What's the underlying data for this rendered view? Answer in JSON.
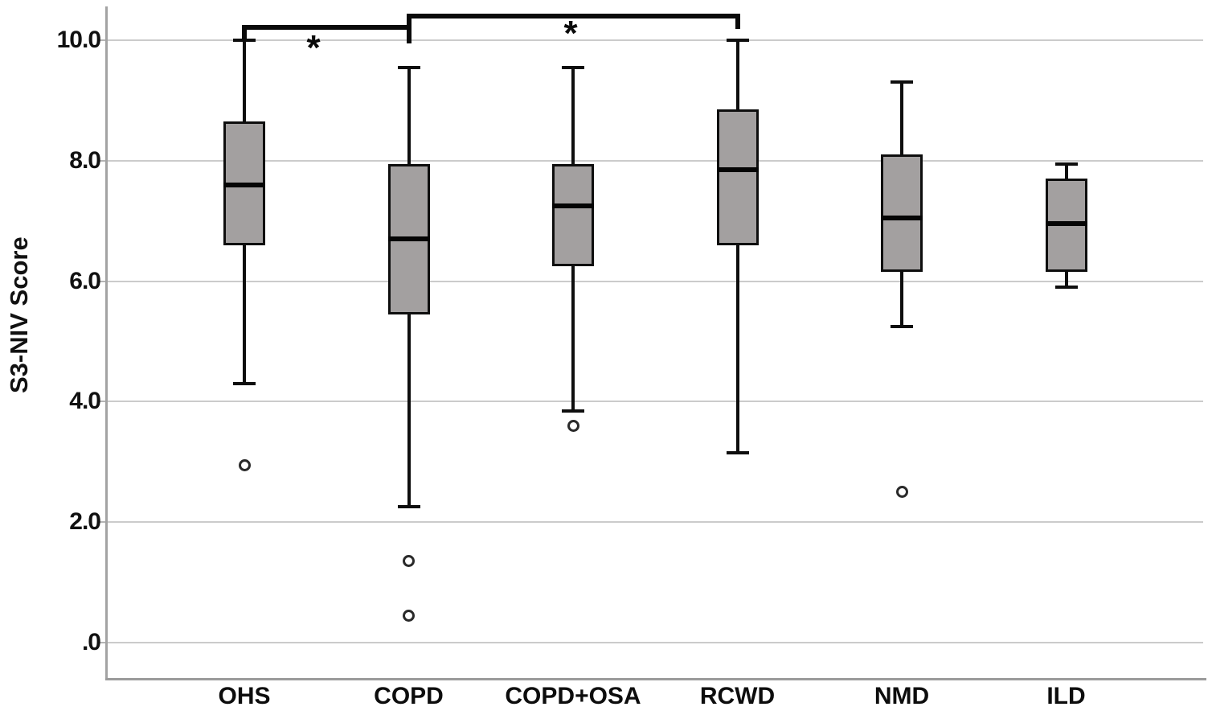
{
  "chart_data": {
    "type": "box",
    "title": "",
    "xlabel": "",
    "ylabel": "S3-NIV Score",
    "ylim": [
      0,
      10
    ],
    "grid": true,
    "yticks": [
      {
        "value": 10.0,
        "label": "10.0"
      },
      {
        "value": 8.0,
        "label": "8.0"
      },
      {
        "value": 6.0,
        "label": "6.0"
      },
      {
        "value": 4.0,
        "label": "4.0"
      },
      {
        "value": 2.0,
        "label": "2.0"
      },
      {
        "value": 0.0,
        "label": ".0"
      }
    ],
    "categories": [
      "OHS",
      "COPD",
      "COPD+OSA",
      "RCWD",
      "NMD",
      "ILD"
    ],
    "boxes": [
      {
        "category": "OHS",
        "whisker_low": 4.3,
        "q1": 6.6,
        "median": 7.6,
        "q3": 8.65,
        "whisker_high": 10.0,
        "outliers": [
          2.95
        ]
      },
      {
        "category": "COPD",
        "whisker_low": 2.25,
        "q1": 5.45,
        "median": 6.7,
        "q3": 7.95,
        "whisker_high": 9.55,
        "outliers": [
          1.35,
          0.45
        ]
      },
      {
        "category": "COPD+OSA",
        "whisker_low": 3.85,
        "q1": 6.25,
        "median": 7.25,
        "q3": 7.95,
        "whisker_high": 9.55,
        "outliers": [
          3.6
        ]
      },
      {
        "category": "RCWD",
        "whisker_low": 3.15,
        "q1": 6.6,
        "median": 7.85,
        "q3": 8.85,
        "whisker_high": 10.0,
        "outliers": []
      },
      {
        "category": "NMD",
        "whisker_low": 5.25,
        "q1": 6.15,
        "median": 7.05,
        "q3": 8.1,
        "whisker_high": 9.3,
        "outliers": [
          2.5
        ]
      },
      {
        "category": "ILD",
        "whisker_low": 5.9,
        "q1": 6.15,
        "median": 6.95,
        "q3": 7.7,
        "whisker_high": 7.95,
        "outliers": []
      }
    ],
    "significance_brackets": [
      {
        "from": "OHS",
        "to": "COPD",
        "label": "*"
      },
      {
        "from": "COPD",
        "to": "RCWD",
        "label": "*"
      }
    ],
    "legend": null,
    "colors": {
      "box_fill": "#a3a0a0",
      "box_border": "#0e0e0e",
      "median": "#050505",
      "gridline": "#cbcbcb",
      "axis_line": "#9b9b9b",
      "background": "#ffffff"
    }
  }
}
